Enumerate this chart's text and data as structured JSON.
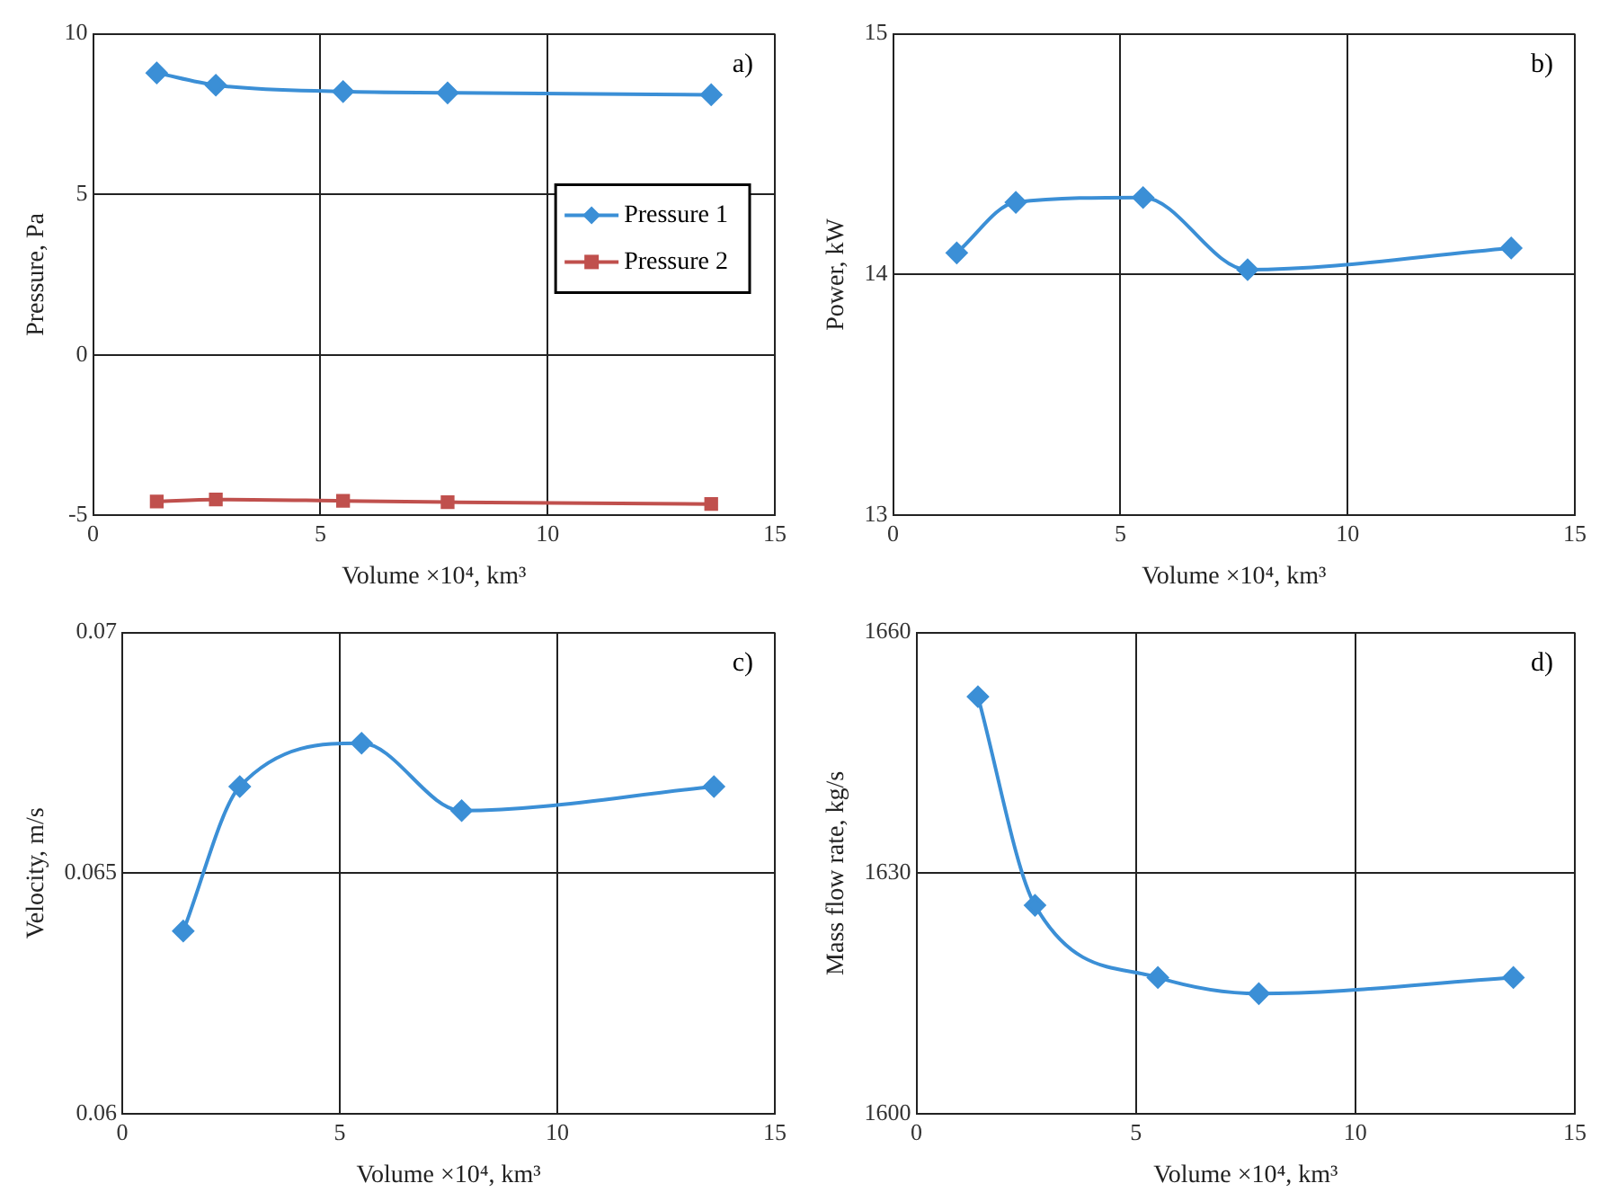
{
  "chart_data": [
    {
      "type": "line",
      "xlabel": "Volume ×10⁴, km³",
      "ylabel": "Pressure, Pa",
      "annotations": [
        "a)"
      ],
      "x": [
        1.4,
        2.7,
        5.5,
        7.8,
        13.6
      ],
      "xlim": [
        0,
        15
      ],
      "xticks": [
        0,
        5,
        10,
        15
      ],
      "ylim": [
        -5,
        10
      ],
      "yticks": [
        -5,
        0,
        5,
        10
      ],
      "grid": true,
      "legend": "right",
      "series": [
        {
          "name": "Pressure 1",
          "color": "#3b8fd6",
          "marker": "diamond",
          "values": [
            8.78,
            8.4,
            8.2,
            8.16,
            8.1
          ]
        },
        {
          "name": "Pressure 2",
          "color": "#c0504d",
          "marker": "square",
          "values": [
            -4.57,
            -4.51,
            -4.55,
            -4.59,
            -4.65
          ]
        }
      ]
    },
    {
      "type": "line",
      "xlabel": "Volume ×10⁴, km³",
      "ylabel": "Power, kW",
      "annotations": [
        "b)"
      ],
      "x": [
        1.4,
        2.7,
        5.5,
        7.8,
        13.6
      ],
      "xlim": [
        0,
        15
      ],
      "xticks": [
        0,
        5,
        10,
        15
      ],
      "ylim": [
        13,
        15
      ],
      "yticks": [
        13,
        14,
        15
      ],
      "grid": true,
      "marker": "diamond",
      "series": [
        {
          "color": "#3b8fd6",
          "values": [
            14.09,
            14.3,
            14.32,
            14.02,
            14.11
          ]
        }
      ]
    },
    {
      "type": "line",
      "xlabel": "Volume ×10⁴, km³",
      "ylabel": "Velocity, m/s",
      "annotations": [
        "c)"
      ],
      "x": [
        1.4,
        2.7,
        5.5,
        7.8,
        13.6
      ],
      "xlim": [
        0,
        15
      ],
      "xticks": [
        0,
        5,
        10,
        15
      ],
      "ylim": [
        0.06,
        0.07
      ],
      "yticks": [
        0.06,
        0.065,
        0.07
      ],
      "grid": true,
      "marker": "diamond",
      "series": [
        {
          "color": "#3b8fd6",
          "values": [
            0.0638,
            0.0668,
            0.0677,
            0.0663,
            0.0668
          ]
        }
      ]
    },
    {
      "type": "line",
      "xlabel": "Volume ×10⁴, km³",
      "ylabel": "Mass flow rate, kg/s",
      "annotations": [
        "d)"
      ],
      "x": [
        1.4,
        2.7,
        5.5,
        7.8,
        13.6
      ],
      "xlim": [
        0,
        15
      ],
      "xticks": [
        0,
        5,
        10,
        15
      ],
      "ylim": [
        1600,
        1660
      ],
      "yticks": [
        1600,
        1630,
        1660
      ],
      "grid": true,
      "marker": "diamond",
      "series": [
        {
          "color": "#3b8fd6",
          "values": [
            1652,
            1626,
            1617,
            1615,
            1617
          ]
        }
      ]
    }
  ]
}
